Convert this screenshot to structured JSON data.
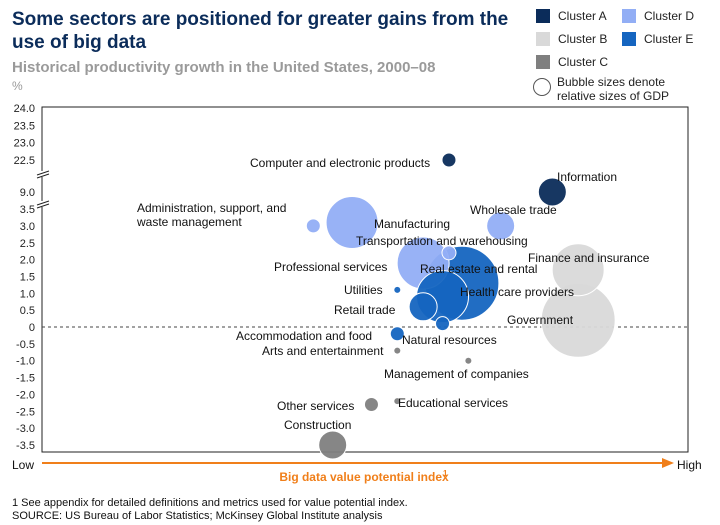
{
  "title": "Some sectors are positioned for greater gains from the use of big data",
  "subtitle": "Historical productivity growth in the United States, 2000–08",
  "unit": "%",
  "legend": [
    {
      "label": "Cluster A",
      "color": "#0b2c5a"
    },
    {
      "label": "Cluster B",
      "color": "#d9d9d9"
    },
    {
      "label": "Cluster C",
      "color": "#7f7f7f"
    },
    {
      "label": "Cluster D",
      "color": "#92aef5"
    },
    {
      "label": "Cluster E",
      "color": "#1565c0"
    }
  ],
  "bubble_note": "Bubble sizes denote relative sizes of GDP",
  "footnote_1": "1  See appendix for detailed definitions and metrics used for value potential index.",
  "footnote_2": "SOURCE:  US Bureau of Labor Statistics; McKinsey Global Institute analysis",
  "chart_data": {
    "type": "scatter",
    "xlabel": "Big data value potential index",
    "xlabel_sup": "1",
    "x_low_label": "Low",
    "x_high_label": "High",
    "ylabel": "%",
    "y_ticks_upper": [
      "24.0",
      "23.5",
      "23.0",
      "22.5"
    ],
    "y_ticks_lower": [
      "9.0",
      "3.5",
      "3.0",
      "2.5",
      "2.0",
      "1.5",
      "1.0",
      "0.5",
      "0",
      "-0.5",
      "-1.0",
      "-1.5",
      "-2.0",
      "-2.5",
      "-3.0",
      "-3.5"
    ],
    "axis_break": "between 22.5 and 9.0, and between 9.0 and 3.5",
    "x_range": [
      0,
      1
    ],
    "points": [
      {
        "name": "Computer and electronic products",
        "x": 0.63,
        "y": 22.5,
        "cluster": "Cluster A",
        "size": "small"
      },
      {
        "name": "Information",
        "x": 0.79,
        "y": 9.0,
        "cluster": "Cluster A",
        "size": "medium"
      },
      {
        "name": "Administration, support, and waste management",
        "x": 0.42,
        "y": 3.0,
        "cluster": "Cluster D",
        "size": "small"
      },
      {
        "name": "Manufacturing",
        "x": 0.48,
        "y": 3.1,
        "cluster": "Cluster D",
        "size": "large"
      },
      {
        "name": "Wholesale trade",
        "x": 0.71,
        "y": 3.0,
        "cluster": "Cluster D",
        "size": "medium"
      },
      {
        "name": "Transportation and warehousing",
        "x": 0.63,
        "y": 2.2,
        "cluster": "Cluster D",
        "size": "small"
      },
      {
        "name": "Finance and insurance",
        "x": 0.83,
        "y": 1.7,
        "cluster": "Cluster B",
        "size": "large"
      },
      {
        "name": "Professional services",
        "x": 0.59,
        "y": 1.9,
        "cluster": "Cluster D",
        "size": "large"
      },
      {
        "name": "Real estate and rental",
        "x": 0.65,
        "y": 1.3,
        "cluster": "Cluster E",
        "size": "very large"
      },
      {
        "name": "Utilities",
        "x": 0.55,
        "y": 1.1,
        "cluster": "Cluster E",
        "size": "tiny"
      },
      {
        "name": "Health care providers",
        "x": 0.62,
        "y": 0.9,
        "cluster": "Cluster E",
        "size": "large"
      },
      {
        "name": "Retail trade",
        "x": 0.59,
        "y": 0.6,
        "cluster": "Cluster E",
        "size": "medium"
      },
      {
        "name": "Government",
        "x": 0.83,
        "y": 0.2,
        "cluster": "Cluster B",
        "size": "very large"
      },
      {
        "name": "Natural resources",
        "x": 0.62,
        "y": 0.1,
        "cluster": "Cluster E",
        "size": "small"
      },
      {
        "name": "Accommodation and food",
        "x": 0.55,
        "y": -0.2,
        "cluster": "Cluster E",
        "size": "small"
      },
      {
        "name": "Arts and entertainment",
        "x": 0.55,
        "y": -0.7,
        "cluster": "Cluster C",
        "size": "tiny"
      },
      {
        "name": "Management of companies",
        "x": 0.66,
        "y": -1.0,
        "cluster": "Cluster C",
        "size": "tiny"
      },
      {
        "name": "Other services",
        "x": 0.51,
        "y": -2.3,
        "cluster": "Cluster C",
        "size": "small"
      },
      {
        "name": "Educational services",
        "x": 0.55,
        "y": -2.2,
        "cluster": "Cluster C",
        "size": "tiny"
      },
      {
        "name": "Construction",
        "x": 0.45,
        "y": -3.5,
        "cluster": "Cluster C",
        "size": "medium"
      }
    ]
  }
}
